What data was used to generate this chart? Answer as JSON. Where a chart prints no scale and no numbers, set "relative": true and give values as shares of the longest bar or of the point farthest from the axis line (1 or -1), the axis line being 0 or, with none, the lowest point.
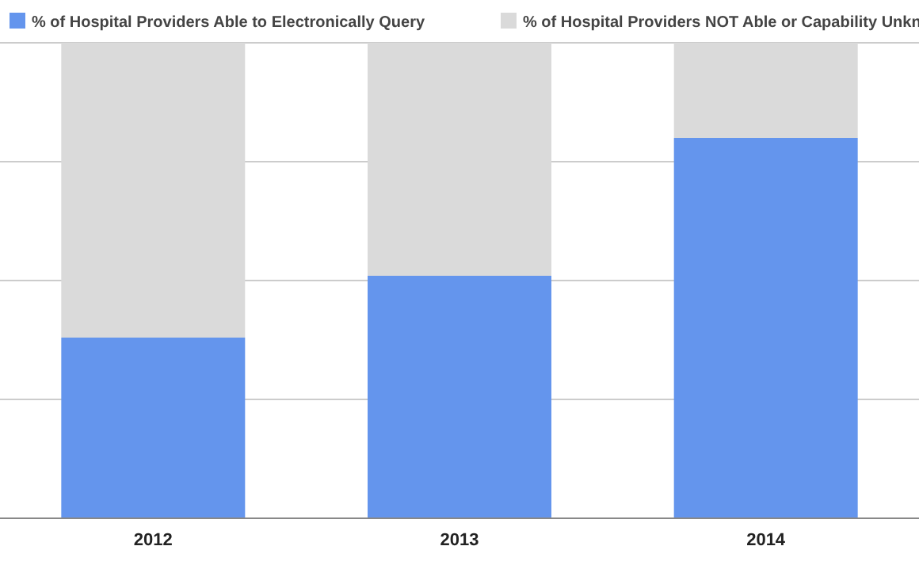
{
  "chart_data": {
    "type": "bar",
    "stacked": true,
    "relative": true,
    "categories": [
      "2012",
      "2013",
      "2014"
    ],
    "series": [
      {
        "name": "% of Hospital Providers Able to Electronically Query",
        "color": "#6495ed",
        "values": [
          0.38,
          0.51,
          0.8
        ]
      },
      {
        "name": "% of Hospital Providers NOT Able or Capability Unkn",
        "color": "#dadada",
        "values": [
          0.62,
          0.49,
          0.2
        ]
      }
    ],
    "grid": "y",
    "legend": "top"
  }
}
